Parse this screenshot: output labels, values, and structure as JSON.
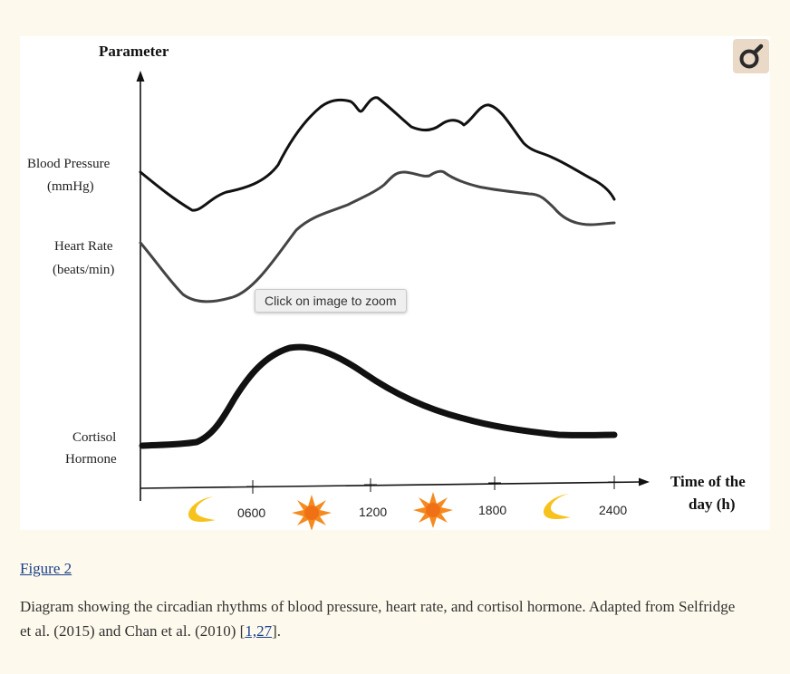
{
  "figure": {
    "y_axis_title": "Parameter",
    "x_axis_title_line1": "Time of the",
    "x_axis_title_line2": "day (h)",
    "series_labels": {
      "blood_pressure_line1": "Blood Pressure",
      "blood_pressure_line2": "(mmHg)",
      "heart_rate_line1": "Heart Rate",
      "heart_rate_line2": "(beats/min)",
      "cortisol_line1": "Cortisol",
      "cortisol_line2": "Hormone"
    },
    "x_ticks": [
      "0600",
      "1200",
      "1800",
      "2400"
    ],
    "icons": [
      "moon-icon",
      "sun-icon",
      "sun-icon",
      "moon-icon"
    ],
    "zoom_tooltip": "Click on image to zoom",
    "colors": {
      "moon": "#f7c21b",
      "sun": "#f58a1f",
      "curve": "#111111",
      "heart_rate_curve": "#444444"
    }
  },
  "caption": {
    "figure_link": "Figure 2",
    "text": "Diagram showing the circadian rhythms of blood pressure, heart rate, and cortisol hormone. Adapted from Selfridge et al. (2015) and Chan et al. (2010) [",
    "ref_link": "1,27",
    "text_end": "]."
  }
}
